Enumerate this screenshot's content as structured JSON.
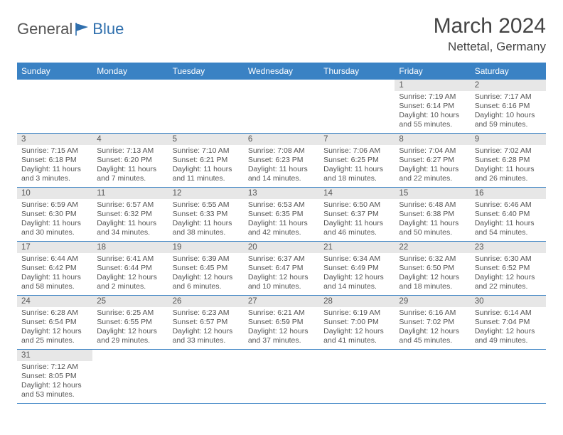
{
  "brand": {
    "part1": "General",
    "part2": "Blue"
  },
  "title": "March 2024",
  "location": "Nettetal, Germany",
  "colors": {
    "header_bg": "#3a82c4",
    "header_text": "#ffffff",
    "daynum_bg": "#e7e7e7",
    "text": "#555555",
    "rule": "#3a82c4"
  },
  "dayNames": [
    "Sunday",
    "Monday",
    "Tuesday",
    "Wednesday",
    "Thursday",
    "Friday",
    "Saturday"
  ],
  "weeks": [
    [
      null,
      null,
      null,
      null,
      null,
      {
        "n": "1",
        "sr": "Sunrise: 7:19 AM",
        "ss": "Sunset: 6:14 PM",
        "dl": "Daylight: 10 hours and 55 minutes."
      },
      {
        "n": "2",
        "sr": "Sunrise: 7:17 AM",
        "ss": "Sunset: 6:16 PM",
        "dl": "Daylight: 10 hours and 59 minutes."
      }
    ],
    [
      {
        "n": "3",
        "sr": "Sunrise: 7:15 AM",
        "ss": "Sunset: 6:18 PM",
        "dl": "Daylight: 11 hours and 3 minutes."
      },
      {
        "n": "4",
        "sr": "Sunrise: 7:13 AM",
        "ss": "Sunset: 6:20 PM",
        "dl": "Daylight: 11 hours and 7 minutes."
      },
      {
        "n": "5",
        "sr": "Sunrise: 7:10 AM",
        "ss": "Sunset: 6:21 PM",
        "dl": "Daylight: 11 hours and 11 minutes."
      },
      {
        "n": "6",
        "sr": "Sunrise: 7:08 AM",
        "ss": "Sunset: 6:23 PM",
        "dl": "Daylight: 11 hours and 14 minutes."
      },
      {
        "n": "7",
        "sr": "Sunrise: 7:06 AM",
        "ss": "Sunset: 6:25 PM",
        "dl": "Daylight: 11 hours and 18 minutes."
      },
      {
        "n": "8",
        "sr": "Sunrise: 7:04 AM",
        "ss": "Sunset: 6:27 PM",
        "dl": "Daylight: 11 hours and 22 minutes."
      },
      {
        "n": "9",
        "sr": "Sunrise: 7:02 AM",
        "ss": "Sunset: 6:28 PM",
        "dl": "Daylight: 11 hours and 26 minutes."
      }
    ],
    [
      {
        "n": "10",
        "sr": "Sunrise: 6:59 AM",
        "ss": "Sunset: 6:30 PM",
        "dl": "Daylight: 11 hours and 30 minutes."
      },
      {
        "n": "11",
        "sr": "Sunrise: 6:57 AM",
        "ss": "Sunset: 6:32 PM",
        "dl": "Daylight: 11 hours and 34 minutes."
      },
      {
        "n": "12",
        "sr": "Sunrise: 6:55 AM",
        "ss": "Sunset: 6:33 PM",
        "dl": "Daylight: 11 hours and 38 minutes."
      },
      {
        "n": "13",
        "sr": "Sunrise: 6:53 AM",
        "ss": "Sunset: 6:35 PM",
        "dl": "Daylight: 11 hours and 42 minutes."
      },
      {
        "n": "14",
        "sr": "Sunrise: 6:50 AM",
        "ss": "Sunset: 6:37 PM",
        "dl": "Daylight: 11 hours and 46 minutes."
      },
      {
        "n": "15",
        "sr": "Sunrise: 6:48 AM",
        "ss": "Sunset: 6:38 PM",
        "dl": "Daylight: 11 hours and 50 minutes."
      },
      {
        "n": "16",
        "sr": "Sunrise: 6:46 AM",
        "ss": "Sunset: 6:40 PM",
        "dl": "Daylight: 11 hours and 54 minutes."
      }
    ],
    [
      {
        "n": "17",
        "sr": "Sunrise: 6:44 AM",
        "ss": "Sunset: 6:42 PM",
        "dl": "Daylight: 11 hours and 58 minutes."
      },
      {
        "n": "18",
        "sr": "Sunrise: 6:41 AM",
        "ss": "Sunset: 6:44 PM",
        "dl": "Daylight: 12 hours and 2 minutes."
      },
      {
        "n": "19",
        "sr": "Sunrise: 6:39 AM",
        "ss": "Sunset: 6:45 PM",
        "dl": "Daylight: 12 hours and 6 minutes."
      },
      {
        "n": "20",
        "sr": "Sunrise: 6:37 AM",
        "ss": "Sunset: 6:47 PM",
        "dl": "Daylight: 12 hours and 10 minutes."
      },
      {
        "n": "21",
        "sr": "Sunrise: 6:34 AM",
        "ss": "Sunset: 6:49 PM",
        "dl": "Daylight: 12 hours and 14 minutes."
      },
      {
        "n": "22",
        "sr": "Sunrise: 6:32 AM",
        "ss": "Sunset: 6:50 PM",
        "dl": "Daylight: 12 hours and 18 minutes."
      },
      {
        "n": "23",
        "sr": "Sunrise: 6:30 AM",
        "ss": "Sunset: 6:52 PM",
        "dl": "Daylight: 12 hours and 22 minutes."
      }
    ],
    [
      {
        "n": "24",
        "sr": "Sunrise: 6:28 AM",
        "ss": "Sunset: 6:54 PM",
        "dl": "Daylight: 12 hours and 25 minutes."
      },
      {
        "n": "25",
        "sr": "Sunrise: 6:25 AM",
        "ss": "Sunset: 6:55 PM",
        "dl": "Daylight: 12 hours and 29 minutes."
      },
      {
        "n": "26",
        "sr": "Sunrise: 6:23 AM",
        "ss": "Sunset: 6:57 PM",
        "dl": "Daylight: 12 hours and 33 minutes."
      },
      {
        "n": "27",
        "sr": "Sunrise: 6:21 AM",
        "ss": "Sunset: 6:59 PM",
        "dl": "Daylight: 12 hours and 37 minutes."
      },
      {
        "n": "28",
        "sr": "Sunrise: 6:19 AM",
        "ss": "Sunset: 7:00 PM",
        "dl": "Daylight: 12 hours and 41 minutes."
      },
      {
        "n": "29",
        "sr": "Sunrise: 6:16 AM",
        "ss": "Sunset: 7:02 PM",
        "dl": "Daylight: 12 hours and 45 minutes."
      },
      {
        "n": "30",
        "sr": "Sunrise: 6:14 AM",
        "ss": "Sunset: 7:04 PM",
        "dl": "Daylight: 12 hours and 49 minutes."
      }
    ],
    [
      {
        "n": "31",
        "sr": "Sunrise: 7:12 AM",
        "ss": "Sunset: 8:05 PM",
        "dl": "Daylight: 12 hours and 53 minutes."
      },
      null,
      null,
      null,
      null,
      null,
      null
    ]
  ]
}
